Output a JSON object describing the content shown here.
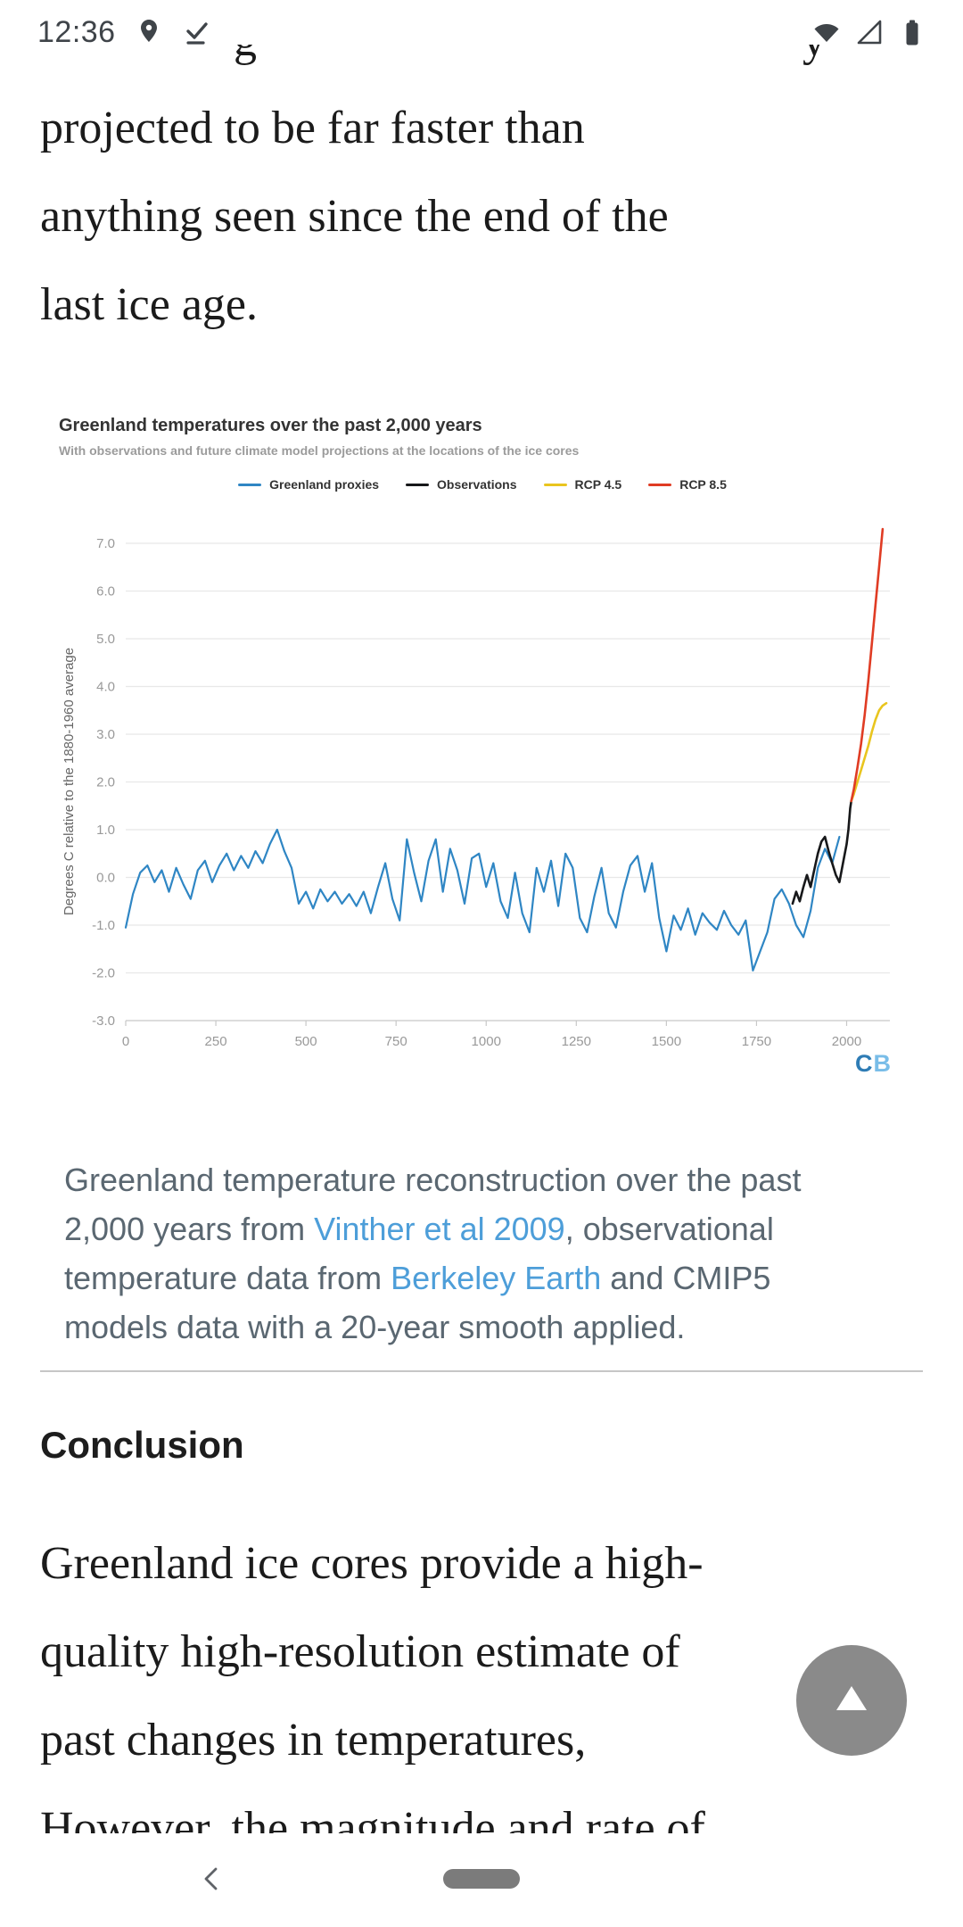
{
  "status_bar": {
    "time": "12:36",
    "left_icons": [
      "location-pin-icon",
      "check-line-icon"
    ],
    "right_icons": [
      "wifi-icon",
      "cell-signal-icon",
      "battery-icon"
    ]
  },
  "article": {
    "cutoff_top": {
      "left_fragment": "g",
      "right_fragment": "y"
    },
    "intro_paragraph": "projected to be far faster than\nanything seen since the end of the\nlast ice age.",
    "caption_lines": [
      [
        {
          "t": "Greenland temperature reconstruction over the past"
        }
      ],
      [
        {
          "t": "2,000 years from "
        },
        {
          "t": "Vinther et al 2009",
          "link": true
        },
        {
          "t": ", observational"
        }
      ],
      [
        {
          "t": "temperature data from "
        },
        {
          "t": "Berkeley Earth",
          "link": true
        },
        {
          "t": " and CMIP5"
        }
      ],
      [
        {
          "t": "models data with a 20-year smooth applied."
        }
      ]
    ],
    "link_color": "#4d9ed9",
    "conclusion_heading": "Conclusion",
    "conclusion_paragraph": "Greenland ice cores provide a high-\nquality high-resolution estimate of\npast changes in temperatures,",
    "cutoff_bottom_line": "However, the magnitude and rate of"
  },
  "chart_data": {
    "type": "line",
    "title": "Greenland temperatures over the past 2,000 years",
    "subtitle": "With observations and future climate model projections at the locations of the ice cores",
    "xlabel": "",
    "ylabel": "Degrees C relative to the 1880-1960 average",
    "xlim": [
      0,
      2120
    ],
    "ylim": [
      -3.0,
      7.0
    ],
    "xticks": [
      0,
      250,
      500,
      750,
      1000,
      1250,
      1500,
      1750,
      2000
    ],
    "yticks": [
      7.0,
      6.0,
      5.0,
      4.0,
      3.0,
      2.0,
      1.0,
      0.0,
      -1.0,
      -2.0,
      -3.0
    ],
    "grid": "horizontal",
    "legend_position": "top",
    "style": {
      "grid_color": "#e8e8e8",
      "axis_color": "#c8c8c8",
      "tick_color": "#999999",
      "title_color": "#333333",
      "subtitle_color": "#9b9b9b"
    },
    "watermark": {
      "c": "C",
      "b": "B",
      "c_color": "#2e7cb5",
      "b_color": "#79bde8"
    },
    "series": [
      {
        "name": "Greenland proxies",
        "color": "#2f86c4",
        "width": 2.2,
        "x": [
          0,
          20,
          40,
          60,
          80,
          100,
          120,
          140,
          160,
          180,
          200,
          220,
          240,
          260,
          280,
          300,
          320,
          340,
          360,
          380,
          400,
          420,
          440,
          460,
          480,
          500,
          520,
          540,
          560,
          580,
          600,
          620,
          640,
          660,
          680,
          700,
          720,
          740,
          760,
          780,
          800,
          820,
          840,
          860,
          880,
          900,
          920,
          940,
          960,
          980,
          1000,
          1020,
          1040,
          1060,
          1080,
          1100,
          1120,
          1140,
          1160,
          1180,
          1200,
          1220,
          1240,
          1260,
          1280,
          1300,
          1320,
          1340,
          1360,
          1380,
          1400,
          1420,
          1440,
          1460,
          1480,
          1500,
          1520,
          1540,
          1560,
          1580,
          1600,
          1620,
          1640,
          1660,
          1680,
          1700,
          1720,
          1740,
          1760,
          1780,
          1800,
          1820,
          1840,
          1860,
          1880,
          1900,
          1920,
          1940,
          1960,
          1980
        ],
        "y": [
          -1.05,
          -0.35,
          0.1,
          0.25,
          -0.1,
          0.15,
          -0.3,
          0.2,
          -0.15,
          -0.45,
          0.15,
          0.35,
          -0.1,
          0.25,
          0.5,
          0.15,
          0.45,
          0.2,
          0.55,
          0.3,
          0.7,
          1.0,
          0.55,
          0.2,
          -0.55,
          -0.3,
          -0.65,
          -0.25,
          -0.5,
          -0.3,
          -0.55,
          -0.35,
          -0.6,
          -0.3,
          -0.75,
          -0.2,
          0.3,
          -0.45,
          -0.9,
          0.8,
          0.1,
          -0.5,
          0.35,
          0.8,
          -0.3,
          0.6,
          0.15,
          -0.55,
          0.4,
          0.5,
          -0.2,
          0.3,
          -0.5,
          -0.85,
          0.1,
          -0.75,
          -1.15,
          0.2,
          -0.3,
          0.35,
          -0.6,
          0.5,
          0.2,
          -0.85,
          -1.15,
          -0.4,
          0.2,
          -0.75,
          -1.05,
          -0.3,
          0.25,
          0.45,
          -0.3,
          0.3,
          -0.85,
          -1.55,
          -0.8,
          -1.1,
          -0.65,
          -1.2,
          -0.75,
          -0.95,
          -1.1,
          -0.7,
          -1.0,
          -1.2,
          -0.9,
          -1.95,
          -1.55,
          -1.15,
          -0.45,
          -0.25,
          -0.55,
          -1.0,
          -1.25,
          -0.7,
          0.2,
          0.6,
          0.3,
          0.85
        ]
      },
      {
        "name": "Observations",
        "color": "#17181a",
        "width": 2.6,
        "x": [
          1850,
          1860,
          1870,
          1880,
          1890,
          1900,
          1910,
          1920,
          1930,
          1940,
          1950,
          1960,
          1970,
          1980,
          1990,
          2000,
          2005,
          2010,
          2013
        ],
        "y": [
          -0.55,
          -0.3,
          -0.5,
          -0.2,
          0.05,
          -0.2,
          0.15,
          0.5,
          0.75,
          0.85,
          0.55,
          0.3,
          0.05,
          -0.1,
          0.3,
          0.7,
          1.0,
          1.45,
          1.6
        ]
      },
      {
        "name": "RCP 4.5",
        "color": "#e9c51e",
        "width": 2.6,
        "x": [
          2013,
          2020,
          2030,
          2040,
          2050,
          2060,
          2070,
          2080,
          2090,
          2100,
          2110
        ],
        "y": [
          1.6,
          1.75,
          2.0,
          2.25,
          2.5,
          2.75,
          3.05,
          3.3,
          3.5,
          3.6,
          3.65
        ]
      },
      {
        "name": "RCP 8.5",
        "color": "#e03c24",
        "width": 2.6,
        "x": [
          2013,
          2020,
          2030,
          2040,
          2050,
          2060,
          2070,
          2080,
          2090,
          2100
        ],
        "y": [
          1.6,
          1.85,
          2.3,
          2.8,
          3.4,
          4.1,
          4.9,
          5.7,
          6.5,
          7.3
        ]
      }
    ]
  },
  "fab": {
    "icon": "arrow-up"
  },
  "nav_bar": {
    "icons": [
      "back-chevron-icon",
      "home-pill"
    ]
  }
}
